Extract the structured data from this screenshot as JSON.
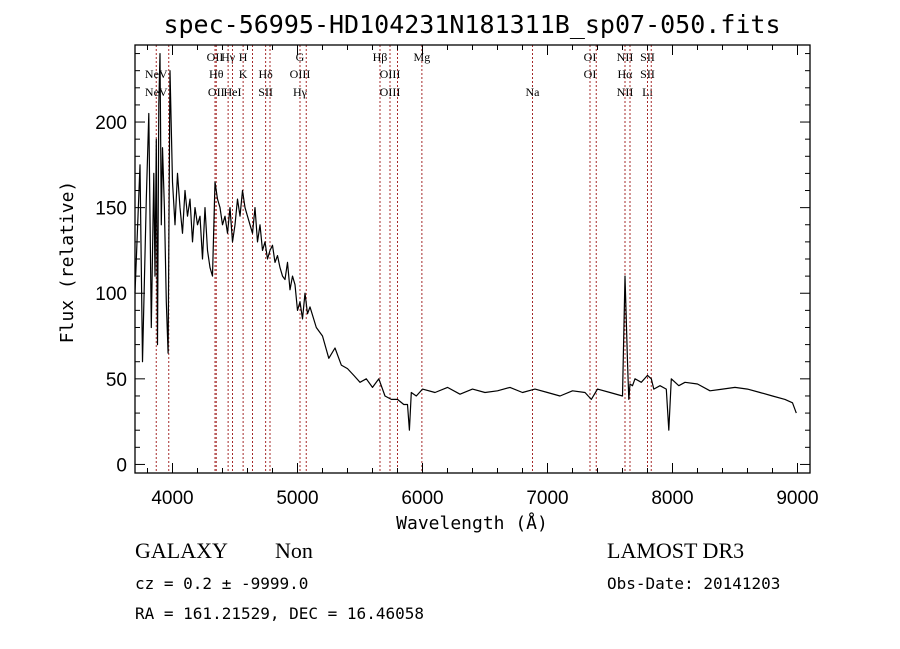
{
  "chart_data": {
    "type": "line",
    "title": "spec-56995-HD104231N181311B_sp07-050.fits",
    "xlabel": "Wavelength (Å)",
    "ylabel": "Flux (relative)",
    "xlim": [
      3700,
      9100
    ],
    "ylim": [
      -5,
      245
    ],
    "xticks": [
      4000,
      5000,
      6000,
      7000,
      8000,
      9000
    ],
    "yticks": [
      0,
      50,
      100,
      150,
      200
    ],
    "grid": false,
    "series": [
      {
        "name": "spectrum",
        "x": [
          3700,
          3740,
          3760,
          3790,
          3810,
          3830,
          3850,
          3860,
          3870,
          3880,
          3890,
          3900,
          3910,
          3920,
          3935,
          3950,
          3965,
          3980,
          4000,
          4020,
          4040,
          4060,
          4080,
          4100,
          4120,
          4140,
          4160,
          4180,
          4200,
          4220,
          4240,
          4260,
          4280,
          4300,
          4320,
          4340,
          4360,
          4380,
          4400,
          4420,
          4440,
          4460,
          4480,
          4500,
          4520,
          4540,
          4560,
          4580,
          4600,
          4620,
          4640,
          4660,
          4680,
          4700,
          4720,
          4740,
          4760,
          4780,
          4800,
          4820,
          4840,
          4860,
          4880,
          4900,
          4920,
          4940,
          4960,
          4980,
          5000,
          5020,
          5040,
          5060,
          5080,
          5100,
          5150,
          5200,
          5250,
          5300,
          5350,
          5400,
          5450,
          5500,
          5550,
          5600,
          5650,
          5700,
          5750,
          5800,
          5850,
          5880,
          5895,
          5910,
          5950,
          6000,
          6100,
          6200,
          6300,
          6400,
          6500,
          6600,
          6700,
          6800,
          6900,
          7000,
          7100,
          7200,
          7300,
          7350,
          7400,
          7500,
          7600,
          7620,
          7640,
          7650,
          7660,
          7680,
          7700,
          7750,
          7800,
          7830,
          7850,
          7900,
          7950,
          7970,
          7990,
          8050,
          8100,
          8200,
          8300,
          8400,
          8500,
          8600,
          8700,
          8800,
          8900,
          8960,
          8990
        ],
        "values": [
          100,
          175,
          60,
          155,
          205,
          80,
          170,
          110,
          190,
          70,
          210,
          240,
          140,
          185,
          150,
          95,
          65,
          230,
          165,
          140,
          170,
          150,
          135,
          160,
          145,
          155,
          130,
          150,
          140,
          145,
          120,
          150,
          125,
          115,
          110,
          165,
          155,
          150,
          140,
          145,
          135,
          150,
          130,
          140,
          155,
          145,
          160,
          150,
          145,
          140,
          135,
          150,
          130,
          140,
          125,
          130,
          120,
          125,
          128,
          118,
          122,
          115,
          110,
          108,
          118,
          102,
          110,
          105,
          90,
          95,
          85,
          100,
          88,
          92,
          80,
          75,
          62,
          68,
          58,
          56,
          52,
          48,
          50,
          45,
          50,
          40,
          38,
          38,
          35,
          35,
          20,
          42,
          40,
          44,
          42,
          45,
          41,
          44,
          42,
          43,
          45,
          42,
          44,
          42,
          40,
          43,
          42,
          38,
          44,
          42,
          40,
          110,
          60,
          38,
          47,
          46,
          50,
          48,
          52,
          50,
          44,
          46,
          44,
          20,
          50,
          46,
          48,
          47,
          43,
          44,
          45,
          44,
          42,
          40,
          38,
          36,
          30
        ]
      }
    ],
    "line_markers": [
      {
        "top": "",
        "middle": "NeV",
        "bottom": "NeV",
        "wavelength": 3870
      },
      {
        "top": "",
        "middle": "",
        "bottom": "",
        "wavelength": 3970
      },
      {
        "top": "OII",
        "middle": "",
        "bottom": "",
        "wavelength": 4340
      },
      {
        "top": "",
        "middle": "Hθ",
        "bottom": "OII",
        "wavelength": 4350
      },
      {
        "top": "Hγ",
        "middle": "",
        "bottom": "",
        "wavelength": 4445
      },
      {
        "top": "",
        "middle": "",
        "bottom": "HeI",
        "wavelength": 4480
      },
      {
        "top": "H",
        "middle": "K",
        "bottom": "",
        "wavelength": 4565
      },
      {
        "top": "",
        "middle": "",
        "bottom": "",
        "wavelength": 4640
      },
      {
        "top": "",
        "middle": "Hδ",
        "bottom": "SII",
        "wavelength": 4745
      },
      {
        "top": "",
        "middle": "",
        "bottom": "",
        "wavelength": 4780
      },
      {
        "top": "G",
        "middle": "OIII",
        "bottom": "Hγ",
        "wavelength": 5020
      },
      {
        "top": "",
        "middle": "",
        "bottom": "",
        "wavelength": 5070
      },
      {
        "top": "Hβ",
        "middle": "",
        "bottom": "",
        "wavelength": 5660
      },
      {
        "top": "",
        "middle": "OIII",
        "bottom": "OIII",
        "wavelength": 5740
      },
      {
        "top": "",
        "middle": "",
        "bottom": "",
        "wavelength": 5800
      },
      {
        "top": "Mg",
        "middle": "",
        "bottom": "",
        "wavelength": 5995
      },
      {
        "top": "",
        "middle": "",
        "bottom": "Na",
        "wavelength": 6880
      },
      {
        "top": "OI",
        "middle": "OI",
        "bottom": "",
        "wavelength": 7340
      },
      {
        "top": "",
        "middle": "",
        "bottom": "",
        "wavelength": 7390
      },
      {
        "top": "NII",
        "middle": "Hα",
        "bottom": "NII",
        "wavelength": 7620
      },
      {
        "top": "",
        "middle": "",
        "bottom": "",
        "wavelength": 7660
      },
      {
        "top": "SII",
        "middle": "SII",
        "bottom": "Li",
        "wavelength": 7800
      },
      {
        "top": "",
        "middle": "",
        "bottom": "",
        "wavelength": 7830
      }
    ],
    "marker_color": "#a52a2a",
    "line_color": "#000000"
  },
  "info": {
    "class": "GALAXY",
    "subclass": "Non",
    "survey": "LAMOST DR3",
    "redshift": "cz =  0.2 ± -9999.0",
    "obs_date": "Obs-Date: 20141203",
    "coords": "RA = 161.21529, DEC =  16.46058"
  }
}
